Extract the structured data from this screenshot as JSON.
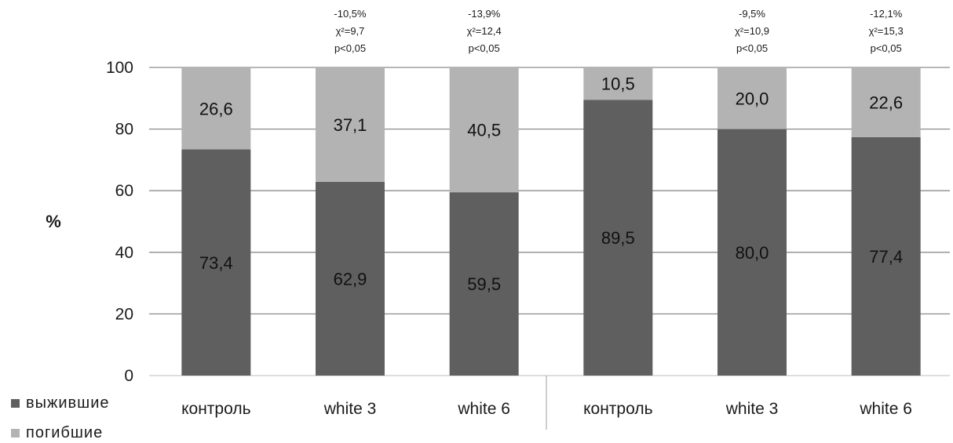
{
  "chart_data": {
    "type": "bar",
    "stacked": true,
    "categories": [
      "контроль",
      "white 3",
      "white 6",
      "контроль",
      "white 3",
      "white 6"
    ],
    "series": [
      {
        "name": "выжившие",
        "color": "#5f5f5f",
        "values": [
          73.4,
          62.9,
          59.5,
          89.5,
          80.0,
          77.4
        ],
        "labels": [
          "73,4",
          "62,9",
          "59,5",
          "89,5",
          "80,0",
          "77,4"
        ]
      },
      {
        "name": "погибшие",
        "color": "#b3b3b3",
        "values": [
          26.6,
          37.1,
          40.5,
          10.5,
          20.0,
          22.6
        ],
        "labels": [
          "26,6",
          "37,1",
          "40,5",
          "10,5",
          "20,0",
          "22,6"
        ]
      }
    ],
    "annotations": [
      [],
      [
        "-10,5%",
        "χ²=9,7",
        "p<0,05"
      ],
      [
        "-13,9%",
        "χ²=12,4",
        "p<0,05"
      ],
      [],
      [
        "-9,5%",
        "χ²=10,9",
        "p<0,05"
      ],
      [
        "-12,1%",
        "χ²=15,3",
        "p<0,05"
      ]
    ],
    "ylabel": "%",
    "ylim": [
      0,
      100
    ],
    "yticks": [
      0,
      20,
      40,
      60,
      80,
      100
    ],
    "grid": true,
    "group_separator_after_index": 2,
    "legend_position": "bottom-left"
  }
}
